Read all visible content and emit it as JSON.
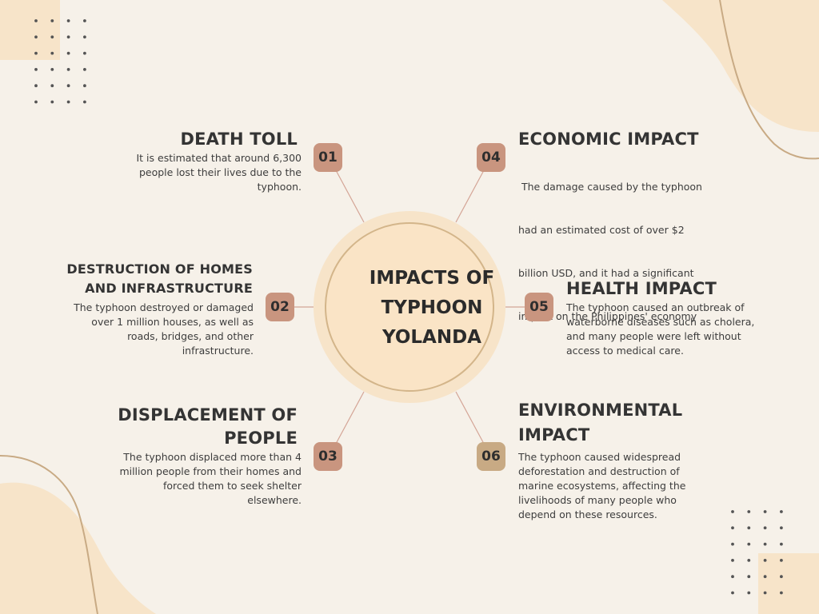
{
  "center": {
    "line1": "IMPACTS OF",
    "line2": "TYPHOON",
    "line3": "YOLANDA"
  },
  "colors": {
    "background": "#f6f1e9",
    "blob": "#f7e4c9",
    "rose_badge": "#c9957f",
    "gold_badge": "#c8aa84",
    "ring": "#d3b58a",
    "dot": "#555555"
  },
  "items": [
    {
      "number": "01",
      "title_lines": [
        "DEATH TOLL"
      ],
      "desc_lines": [
        "It is estimated that around 6,300",
        "people lost their lives due to the",
        "typhoon."
      ]
    },
    {
      "number": "02",
      "title_lines": [
        "DESTRUCTION OF HOMES",
        "AND INFRASTRUCTURE"
      ],
      "desc_lines": [
        "The typhoon destroyed or damaged",
        "over 1 million houses, as well as",
        "roads, bridges, and other",
        "infrastructure."
      ]
    },
    {
      "number": "03",
      "title_lines": [
        "DISPLACEMENT OF",
        "PEOPLE"
      ],
      "desc_lines": [
        "The typhoon displaced more than 4",
        "million people from their homes and",
        "forced them to seek shelter",
        "elsewhere."
      ]
    },
    {
      "number": "04",
      "title_lines": [
        "ECONOMIC IMPACT"
      ],
      "desc_lines": [
        " The damage caused by the typhoon",
        "had an estimated cost of over $2",
        "billion USD, and it had a significant",
        "impact on the Philippines' economy"
      ]
    },
    {
      "number": "05",
      "title_lines": [
        "HEALTH IMPACT"
      ],
      "desc_lines": [
        "The typhoon caused an outbreak of",
        "waterborne diseases such as cholera,",
        "and many people were left without",
        "access to medical care."
      ]
    },
    {
      "number": "06",
      "title_lines": [
        "ENVIRONMENTAL",
        "IMPACT"
      ],
      "desc_lines": [
        "The typhoon caused widespread",
        "deforestation and destruction of",
        "marine ecosystems, affecting the",
        "livelihoods of many people who",
        "depend on these resources."
      ]
    }
  ]
}
